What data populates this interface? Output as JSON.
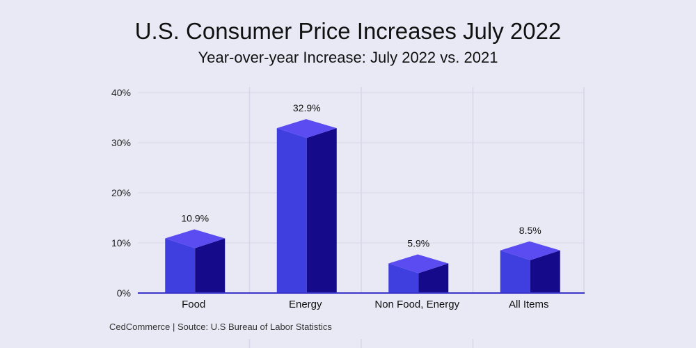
{
  "title": "U.S. Consumer Price Increases July 2022",
  "subtitle": "Year-over-year Increase: July 2022 vs. 2021",
  "source": "CedCommerce | Soutce: U.S Bureau of Labor Statistics",
  "colors": {
    "background": "#e9e9f5",
    "bar_front": "#3f3fe0",
    "bar_side": "#140a8a",
    "bar_top": "#5a4cf0",
    "axis": "#3a35c8",
    "grid": "#d6d6e8"
  },
  "chart_data": {
    "type": "bar",
    "categories": [
      "Food",
      "Energy",
      "Non Food, Energy",
      "All Items"
    ],
    "values": [
      10.9,
      32.9,
      5.9,
      8.5
    ],
    "value_labels": [
      "10.9%",
      "32.9%",
      "5.9%",
      "8.5%"
    ],
    "yticks": [
      "0%",
      "10%",
      "20%",
      "30%",
      "40%"
    ],
    "ytick_values": [
      0,
      10,
      20,
      30,
      40
    ],
    "ylim": [
      0,
      40
    ],
    "style": "3d-column",
    "grid": true
  }
}
